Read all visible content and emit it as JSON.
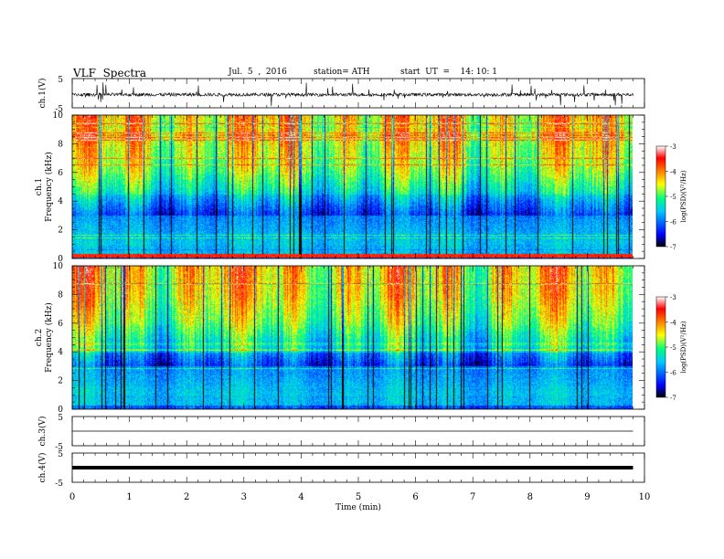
{
  "header": {
    "title": "VLF  Spectra",
    "date": "Jul.  5  ,  2016",
    "station": "station= ATH",
    "start_ut": "start  UT  =    14: 10: 1"
  },
  "chart_data": [
    {
      "type": "line",
      "name": "ch1-waveform",
      "ylabel": "ch.1(V)",
      "ylim": [
        -5,
        5
      ],
      "yticks": [
        5,
        -5
      ],
      "xlim": [
        0,
        10
      ],
      "baseline": -0.5,
      "color": "#000000"
    },
    {
      "type": "heatmap",
      "name": "ch1-spectrogram",
      "ylabel": "ch.1\nFrequency  (kHz)",
      "ylim": [
        0,
        10
      ],
      "yticks": [
        "0",
        "2",
        "4",
        "6",
        "8",
        "10"
      ],
      "xlim": [
        0,
        9.8
      ],
      "colorbar": {
        "label": "log(PSD)(V²/Hz)",
        "range": [
          -7,
          -3
        ],
        "ticks": [
          "-3",
          "-4",
          "-5",
          "-6",
          "-7"
        ],
        "colors": [
          "#000000",
          "#0000ff",
          "#00c8ff",
          "#00ff80",
          "#ffff00",
          "#ff8000",
          "#ff0000",
          "#ffffff"
        ]
      }
    },
    {
      "type": "heatmap",
      "name": "ch2-spectrogram",
      "ylabel": "ch.2\nFrequency  (kHz)",
      "ylim": [
        0,
        10
      ],
      "yticks": [
        "0",
        "2",
        "4",
        "6",
        "8",
        "10"
      ],
      "xlim": [
        0,
        9.8
      ],
      "colorbar": {
        "label": "log(PSD)(V²/Hz)",
        "range": [
          -7,
          -3
        ],
        "ticks": [
          "-3",
          "-4",
          "-5",
          "-6",
          "-7"
        ],
        "colors": [
          "#000000",
          "#0000ff",
          "#00c8ff",
          "#00ff80",
          "#ffff00",
          "#ff8000",
          "#ff0000",
          "#ffffff"
        ]
      }
    },
    {
      "type": "line",
      "name": "ch3-waveform",
      "ylabel": "ch.3(V)",
      "ylim": [
        -5,
        5
      ],
      "yticks": [
        5,
        -5
      ],
      "xlim": [
        0,
        9.8
      ],
      "baseline": 0,
      "color": "#000000"
    },
    {
      "type": "line",
      "name": "ch4-waveform",
      "ylabel": "ch.4(V)",
      "ylim": [
        -5,
        5
      ],
      "yticks": [
        5,
        -5
      ],
      "xlim": [
        0,
        9.8
      ],
      "baseline": 0,
      "color": "#000000"
    }
  ],
  "xaxis": {
    "label": "Time  (min)",
    "range": [
      0,
      10
    ],
    "ticks": [
      "0",
      "1",
      "2",
      "3",
      "4",
      "5",
      "6",
      "7",
      "8",
      "9",
      "10"
    ]
  }
}
